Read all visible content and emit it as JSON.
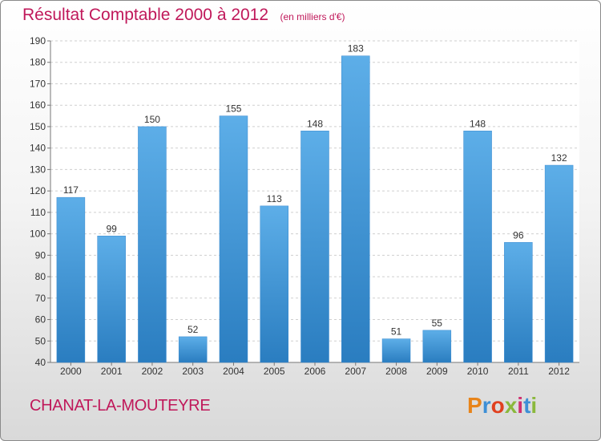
{
  "chart_data": {
    "type": "bar",
    "title": "Résultat Comptable 2000 à 2012",
    "subtitle": "(en milliers d'€)",
    "categories": [
      "2000",
      "2001",
      "2002",
      "2003",
      "2004",
      "2005",
      "2006",
      "2007",
      "2008",
      "2009",
      "2010",
      "2011",
      "2012"
    ],
    "values": [
      117,
      99,
      150,
      52,
      155,
      113,
      148,
      183,
      51,
      55,
      148,
      96,
      132
    ],
    "ylim": [
      40,
      190
    ],
    "yticks": [
      40,
      50,
      60,
      70,
      80,
      90,
      100,
      110,
      120,
      130,
      140,
      150,
      160,
      170,
      180,
      190
    ],
    "xlabel": "",
    "ylabel": "",
    "grid": true,
    "bar_color_light": "#5daee8",
    "bar_color_dark": "#2a7dc0"
  },
  "footer": {
    "commune": "CHANAT-LA-MOUTEYRE",
    "logo_text": "Proxiti",
    "logo_colors": [
      "#e8841a",
      "#3d8fd6",
      "#e0401f",
      "#8ab83c",
      "#d03070",
      "#3d8fd6",
      "#8ab83c"
    ]
  },
  "colors": {
    "title": "#c0185a"
  }
}
